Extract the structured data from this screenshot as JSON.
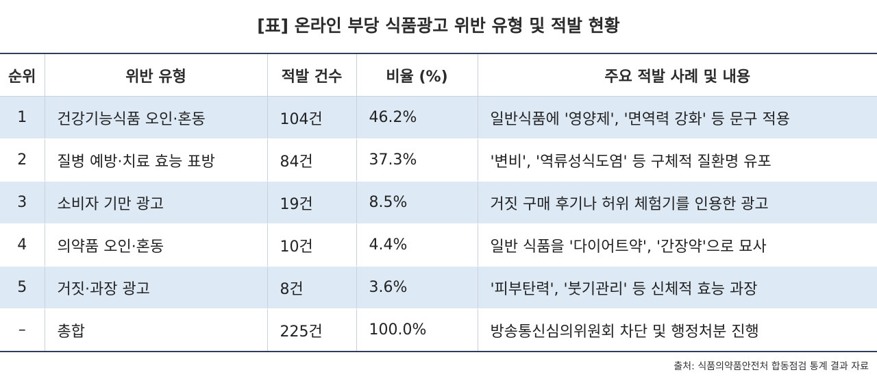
{
  "header": {
    "title": "[표] 온라인 부당 식품광고 위반 유형 및 적발 현황"
  },
  "table": {
    "columns": [
      "순위",
      "위반 유형",
      "적발 건수",
      "비율 (%)",
      "주요 적발 사례 및 내용"
    ],
    "rows": [
      [
        "1",
        "건강기능식품 오인·혼동",
        "104건",
        "46.2%",
        "일반식품에 '영양제', '면역력 강화' 등 문구 적용"
      ],
      [
        "2",
        "질병 예방·치료 효능 표방",
        "84건",
        "37.3%",
        "'변비', '역류성식도염' 등 구체적 질환명 유포"
      ],
      [
        "3",
        "소비자 기만 광고",
        "19건",
        "8.5%",
        "거짓 구매 후기나 허위 체험기를 인용한 광고"
      ],
      [
        "4",
        "의약품 오인·혼동",
        "10건",
        "4.4%",
        "일반 식품을 '다이어트약', '간장약'으로 묘사"
      ],
      [
        "5",
        "거짓·과장 광고",
        "8건",
        "3.6%",
        "'피부탄력', '붓기관리' 등 신체적 효능 과장"
      ],
      [
        "–",
        "총합",
        "225건",
        "100.0%",
        "방송통신심의위원회 차단 및 행정처분 진행"
      ]
    ]
  },
  "source": "출처: 식품의약품안전처 합동점검 통계 결과 자료"
}
